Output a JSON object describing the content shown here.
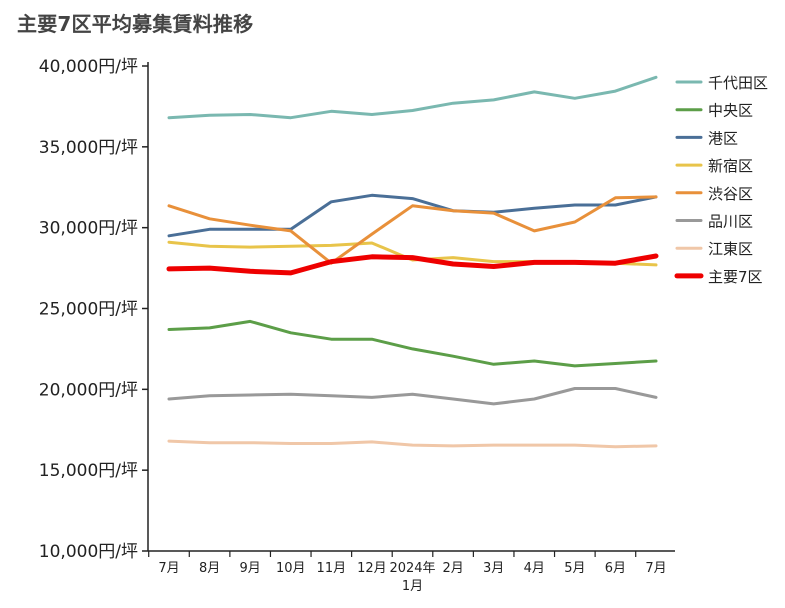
{
  "chart_data": {
    "type": "line",
    "title": "主要7区平均募集賃料推移",
    "xlabel": "",
    "ylabel": "",
    "categories": [
      "7月",
      "8月",
      "9月",
      "10月",
      "11月",
      "12月",
      "2024年\n1月",
      "2月",
      "3月",
      "4月",
      "5月",
      "6月",
      "7月"
    ],
    "ylim": [
      10000,
      40000
    ],
    "yticks": [
      10000,
      15000,
      20000,
      25000,
      30000,
      35000,
      40000
    ],
    "ytick_labels": [
      "10,000円/坪",
      "15,000円/坪",
      "20,000円/坪",
      "25,000円/坪",
      "30,000円/坪",
      "35,000円/坪",
      "40,000円/坪"
    ],
    "grid": false,
    "legend_position": "right",
    "series": [
      {
        "name": "千代田区",
        "color": "#7ab8b0",
        "width": "normal",
        "values": [
          36800,
          36950,
          37000,
          36800,
          37200,
          37000,
          37250,
          37700,
          37900,
          38400,
          38000,
          38450,
          39300
        ]
      },
      {
        "name": "中央区",
        "color": "#5c9e48",
        "width": "normal",
        "values": [
          23700,
          23800,
          24200,
          23500,
          23100,
          23100,
          22500,
          22050,
          21550,
          21750,
          21450,
          21600,
          21750
        ]
      },
      {
        "name": "港区",
        "color": "#4a6f97",
        "width": "normal",
        "values": [
          29500,
          29900,
          29900,
          29900,
          31600,
          32000,
          31800,
          31050,
          30950,
          31200,
          31400,
          31400,
          31900
        ]
      },
      {
        "name": "新宿区",
        "color": "#e8c44a",
        "width": "normal",
        "values": [
          29100,
          28850,
          28800,
          28850,
          28900,
          29050,
          28000,
          28150,
          27900,
          27900,
          27850,
          27800,
          27700
        ]
      },
      {
        "name": "渋谷区",
        "color": "#e8903a",
        "width": "normal",
        "values": [
          31350,
          30550,
          30150,
          29800,
          27800,
          29600,
          31350,
          31050,
          30900,
          29800,
          30350,
          31850,
          31900
        ]
      },
      {
        "name": "品川区",
        "color": "#999999",
        "width": "normal",
        "values": [
          19400,
          19600,
          19650,
          19700,
          19600,
          19500,
          19700,
          19400,
          19100,
          19400,
          20050,
          20050,
          19500
        ]
      },
      {
        "name": "江東区",
        "color": "#f0c7a8",
        "width": "normal",
        "values": [
          16800,
          16700,
          16700,
          16650,
          16650,
          16750,
          16550,
          16500,
          16550,
          16550,
          16550,
          16450,
          16500
        ]
      },
      {
        "name": "主要7区",
        "color": "#ee0000",
        "width": "bold",
        "values": [
          27450,
          27500,
          27300,
          27200,
          27900,
          28200,
          28150,
          27750,
          27600,
          27850,
          27850,
          27800,
          28250
        ]
      }
    ]
  }
}
